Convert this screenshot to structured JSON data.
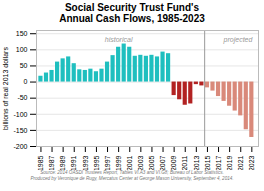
{
  "chart_data": {
    "type": "bar",
    "title": "Social Security Trust Fund's\nAnnual Cash Flows, 1985-2023",
    "ylabel": "billions of real 2013 dollars",
    "caption": "Source: 2014 OASDI Trustees Report, Tables VI.A3 and VI.G8; Bureau of Labor Statistics.\nProduced by Veronique de Rugy, Mercatus Center at George Mason University, September 4, 2014.",
    "x": [
      1985,
      1986,
      1987,
      1988,
      1989,
      1990,
      1991,
      1992,
      1993,
      1994,
      1995,
      1996,
      1997,
      1998,
      1999,
      2000,
      2001,
      2002,
      2003,
      2004,
      2005,
      2006,
      2007,
      2008,
      2009,
      2010,
      2011,
      2012,
      2013,
      2014,
      2015,
      2016,
      2017,
      2018,
      2019,
      2020,
      2021,
      2022,
      2023
    ],
    "values": [
      18,
      28,
      36,
      62,
      72,
      78,
      57,
      38,
      36,
      40,
      32,
      40,
      62,
      82,
      108,
      118,
      108,
      80,
      83,
      80,
      83,
      78,
      93,
      88,
      -42,
      -55,
      -72,
      -68,
      -8,
      -12,
      -18,
      -28,
      -45,
      -60,
      -75,
      -90,
      -105,
      -148,
      -172
    ],
    "colors": [
      "#1FBFBF",
      "#1FBFBF",
      "#1FBFBF",
      "#1FBFBF",
      "#1FBFBF",
      "#1FBFBF",
      "#1FBFBF",
      "#1FBFBF",
      "#1FBFBF",
      "#1FBFBF",
      "#1FBFBF",
      "#1FBFBF",
      "#1FBFBF",
      "#1FBFBF",
      "#1FBFBF",
      "#1FBFBF",
      "#1FBFBF",
      "#1FBFBF",
      "#1FBFBF",
      "#1FBFBF",
      "#1FBFBF",
      "#1FBFBF",
      "#1FBFBF",
      "#1FBFBF",
      "#B22222",
      "#B22222",
      "#B22222",
      "#B22222",
      "#B22222",
      "#B22222",
      "#D9897A",
      "#D9897A",
      "#D9897A",
      "#D9897A",
      "#D9897A",
      "#D9897A",
      "#D9897A",
      "#D9897A",
      "#D9897A"
    ],
    "xlim": [
      1984.2,
      2024.2
    ],
    "xticks": [
      1985,
      1987,
      1989,
      1991,
      1993,
      1995,
      1997,
      1999,
      2001,
      2003,
      2005,
      2007,
      2009,
      2011,
      2013,
      2015,
      2017,
      2019,
      2021,
      2023
    ],
    "ylim": [
      -200,
      160
    ],
    "yticks": [
      -200,
      -150,
      -100,
      -50,
      0,
      50,
      100,
      150
    ],
    "grid": true,
    "divider": 2014.5,
    "annotations": [
      {
        "text": "historical",
        "x": 1999,
        "y": 130
      },
      {
        "text": "projected",
        "x": 2020.5,
        "y": 130
      }
    ]
  }
}
